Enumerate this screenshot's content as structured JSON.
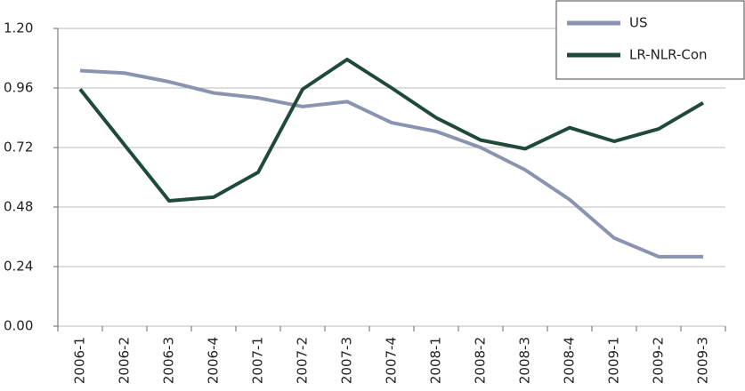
{
  "chart_data": {
    "type": "line",
    "categories": [
      "2006-1",
      "2006-2",
      "2006-3",
      "2006-4",
      "2007-1",
      "2007-2",
      "2007-3",
      "2007-4",
      "2008-1",
      "2008-2",
      "2008-3",
      "2008-4",
      "2009-1",
      "2009-2",
      "2009-3"
    ],
    "series": [
      {
        "name": "US",
        "color": "#8a93b0",
        "values": [
          1.03,
          1.02,
          0.985,
          0.94,
          0.92,
          0.885,
          0.905,
          0.82,
          0.785,
          0.72,
          0.63,
          0.51,
          0.355,
          0.28,
          0.28
        ]
      },
      {
        "name": "LR-NLR-Con",
        "color": "#1f4a3a",
        "values": [
          0.955,
          0.73,
          0.505,
          0.52,
          0.62,
          0.955,
          1.075,
          0.96,
          0.84,
          0.75,
          0.715,
          0.8,
          0.745,
          0.795,
          0.9
        ]
      }
    ],
    "ylim": [
      0,
      1.2
    ],
    "yticks": [
      {
        "value": 0,
        "label": "0.00"
      },
      0.24,
      0.48,
      0.72,
      0.96,
      {
        "value": 1.2,
        "label": "1.20"
      }
    ],
    "grid": true,
    "legend": "upper right"
  }
}
